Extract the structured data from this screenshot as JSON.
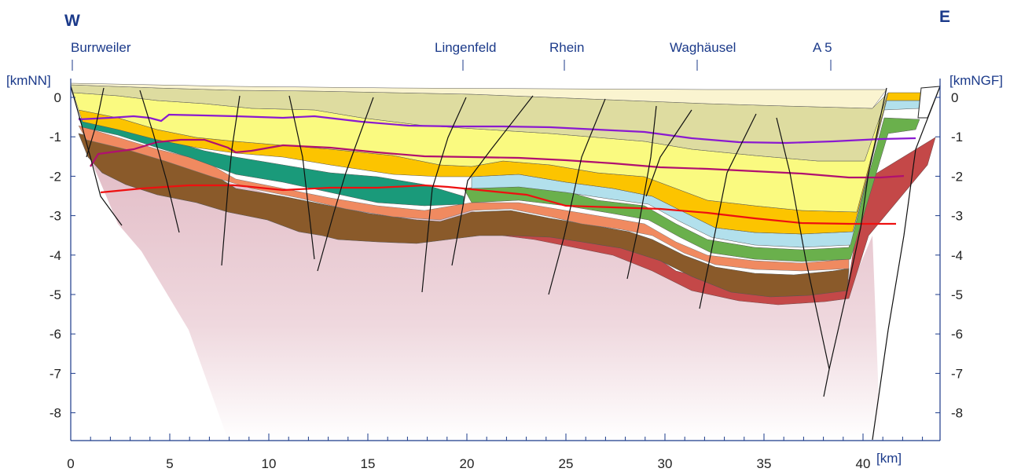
{
  "header": {
    "west": "W",
    "east": "E"
  },
  "localities": [
    {
      "name": "Burrweiler",
      "km": 0
    },
    {
      "name": "Lingenfeld",
      "km": 19.8
    },
    {
      "name": "Rhein",
      "km": 25.1
    },
    {
      "name": "Waghäusel",
      "km": 31.7
    },
    {
      "name": "A 5",
      "km": 38.5
    }
  ],
  "axes": {
    "left_unit": "[kmNN]",
    "right_unit": "[kmNGF]",
    "x_unit": "[km]",
    "x_ticks": [
      "0",
      "5",
      "10",
      "15",
      "20",
      "25",
      "30",
      "35",
      "40"
    ],
    "y_ticks": [
      "0",
      "-1",
      "-2",
      "-3",
      "-4",
      "-5",
      "-6",
      "-7",
      "-8"
    ]
  },
  "colors": {
    "axis": "#1b3a8a",
    "top_fill": "#faf4d0",
    "tan": "#dedca0",
    "pale_yellow": "#fafa80",
    "orange": "#fcc400",
    "light_blue": "#b2e0ec",
    "green": "#6ab04c",
    "teal": "#1a9a7a",
    "salmon": "#f08a60",
    "pink_line": "#f4b4a4",
    "brown": "#8a5a2a",
    "dark_red": "#c44848",
    "basement": "#e6c4cc",
    "violet_line": "#8a1ad0",
    "magenta_line": "#b01070",
    "red_line": "#ee1010"
  }
}
